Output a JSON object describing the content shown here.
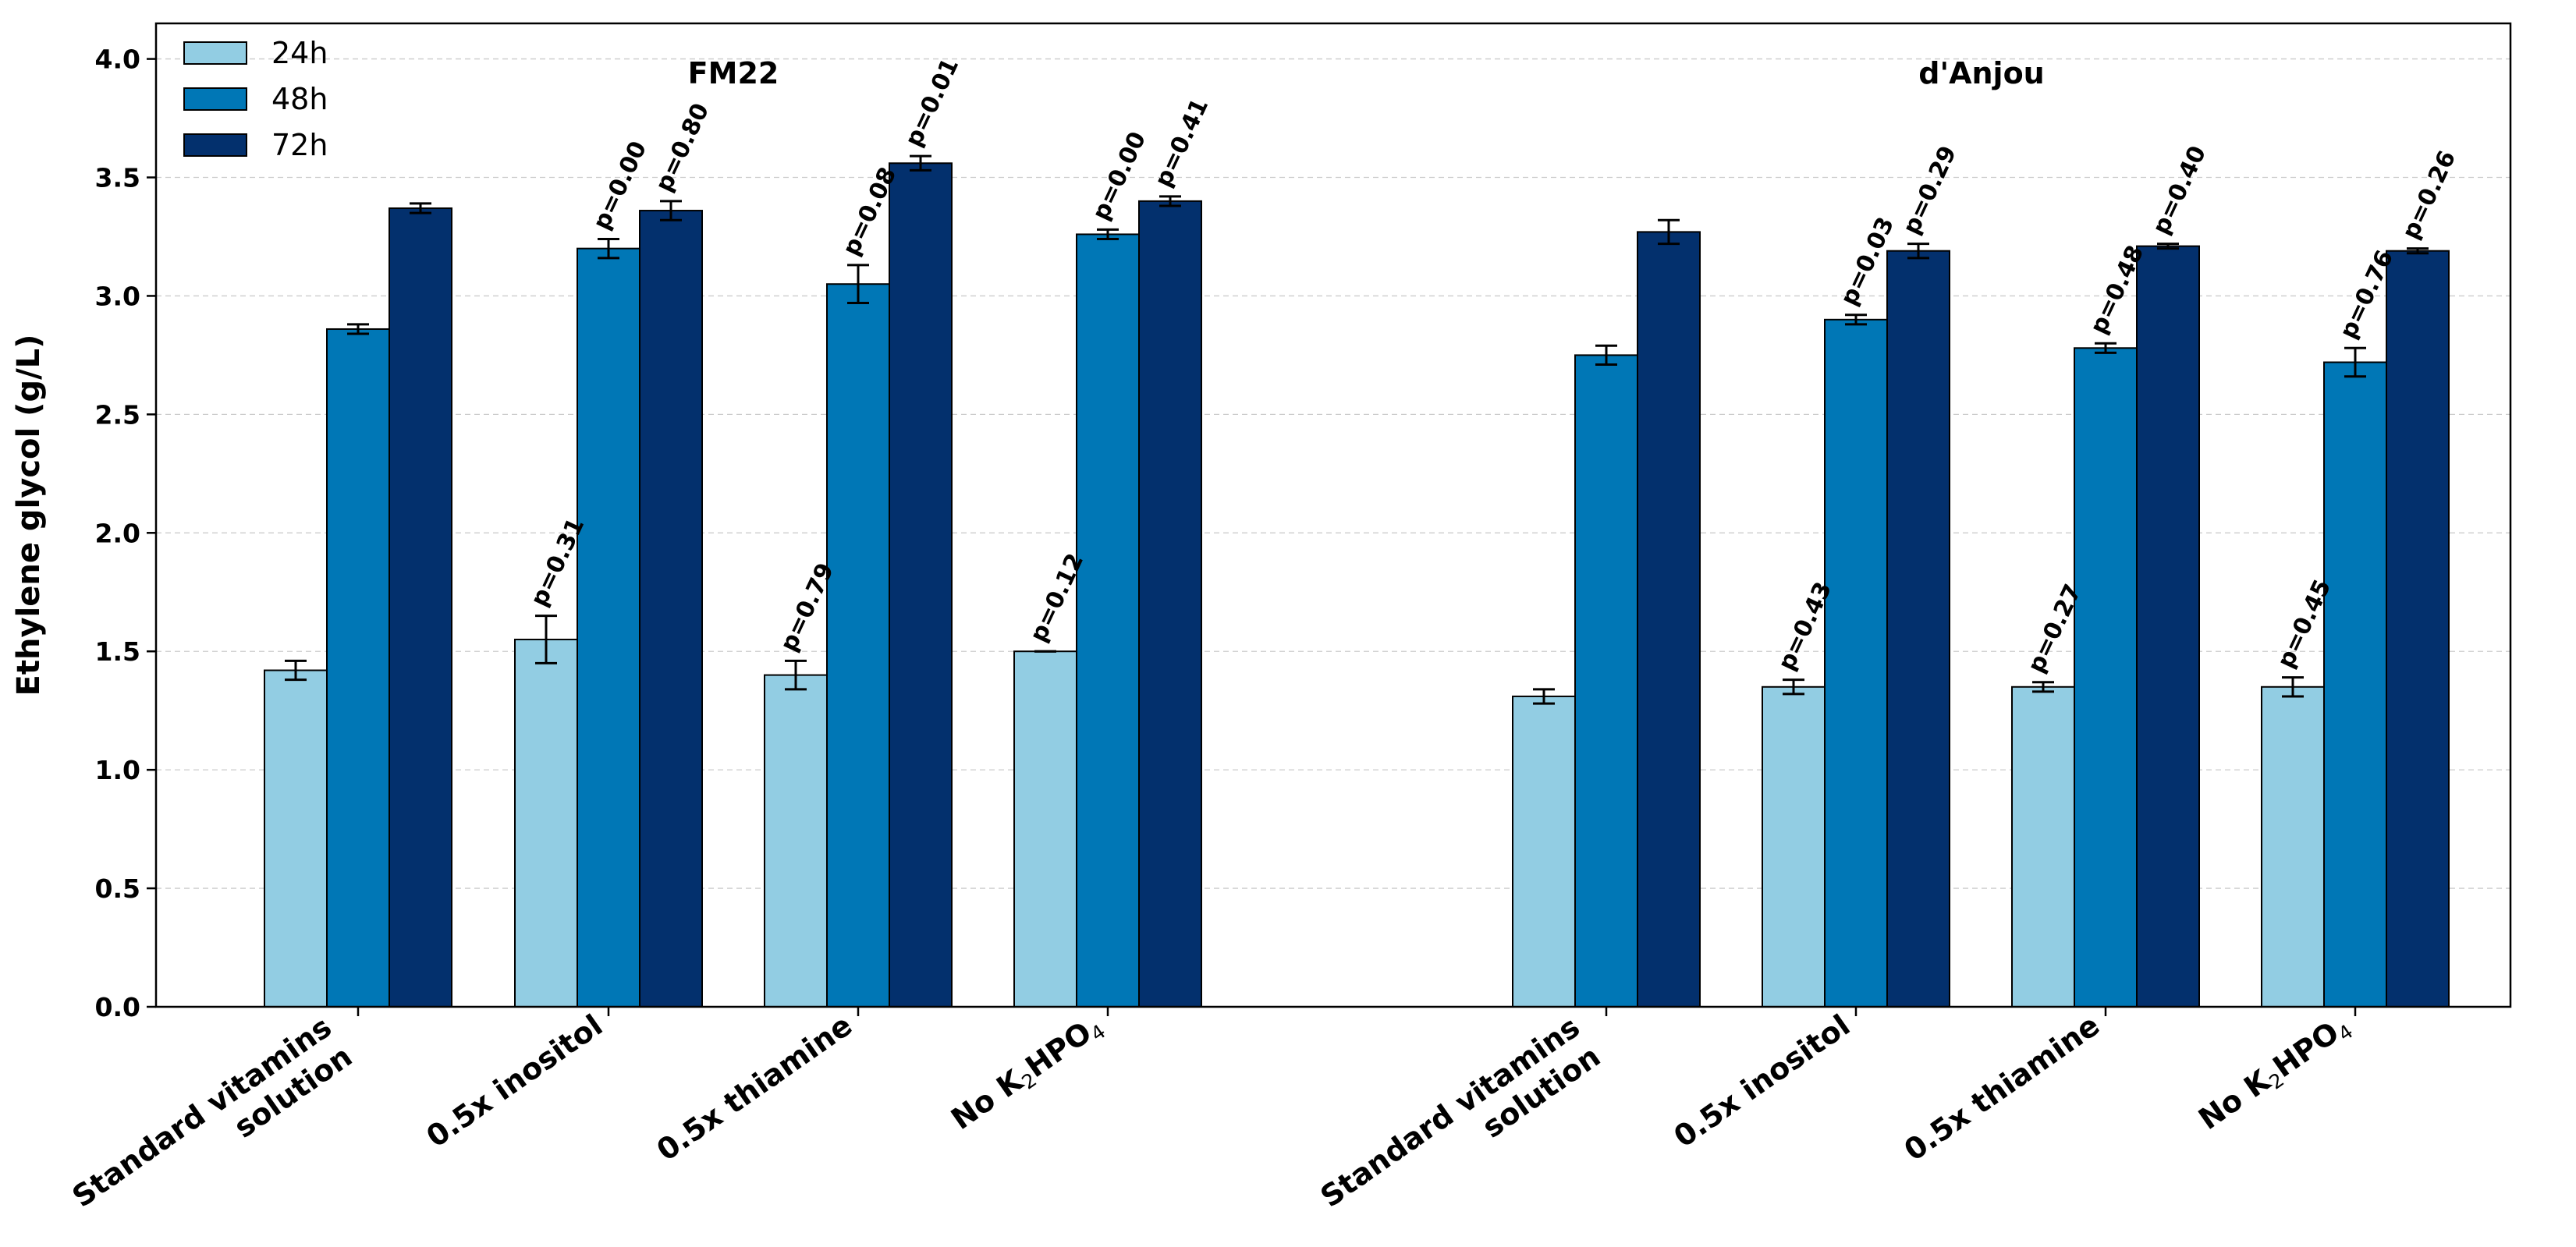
{
  "chart_data": {
    "type": "bar",
    "ylabel": "Ethylene glycol (g/L)",
    "ylim": [
      0,
      4.15
    ],
    "yticks": [
      0.0,
      0.5,
      1.0,
      1.5,
      2.0,
      2.5,
      3.0,
      3.5,
      4.0
    ],
    "ytick_labels": [
      "0.0",
      "0.5",
      "1.0",
      "1.5",
      "2.0",
      "2.5",
      "3.0",
      "3.5",
      "4.0"
    ],
    "grid": "horizontal dashed",
    "legend_position": "top-left",
    "legend": [
      {
        "name": "24h",
        "color": "#92cde3"
      },
      {
        "name": "48h",
        "color": "#0077b6"
      },
      {
        "name": "72h",
        "color": "#03306d"
      }
    ],
    "groups": [
      {
        "title": "FM22",
        "categories": [
          {
            "label": [
              "Standard vitamins",
              "solution"
            ],
            "values": [
              1.42,
              2.86,
              3.37
            ],
            "errors": [
              0.04,
              0.02,
              0.02
            ],
            "pvalues": [
              "",
              "",
              ""
            ]
          },
          {
            "label": [
              "0.5x inositol"
            ],
            "values": [
              1.55,
              3.2,
              3.36
            ],
            "errors": [
              0.1,
              0.04,
              0.04
            ],
            "pvalues": [
              "p=0.31",
              "p=0.00",
              "p=0.80"
            ]
          },
          {
            "label": [
              "0.5x thiamine"
            ],
            "values": [
              1.4,
              3.05,
              3.56
            ],
            "errors": [
              0.06,
              0.08,
              0.03
            ],
            "pvalues": [
              "p=0.79",
              "p=0.08",
              "p=0.01"
            ]
          },
          {
            "label": [
              "No K2HPO4"
            ],
            "values": [
              1.5,
              3.26,
              3.4
            ],
            "errors": [
              0.0,
              0.02,
              0.02
            ],
            "pvalues": [
              "p=0.12",
              "p=0.00",
              "p=0.41"
            ]
          }
        ]
      },
      {
        "title": "d'Anjou",
        "categories": [
          {
            "label": [
              "Standard vitamins",
              "solution"
            ],
            "values": [
              1.31,
              2.75,
              3.27
            ],
            "errors": [
              0.03,
              0.04,
              0.05
            ],
            "pvalues": [
              "",
              "",
              ""
            ]
          },
          {
            "label": [
              "0.5x inositol"
            ],
            "values": [
              1.35,
              2.9,
              3.19
            ],
            "errors": [
              0.03,
              0.02,
              0.03
            ],
            "pvalues": [
              "p=0.43",
              "p=0.03",
              "p=0.29"
            ]
          },
          {
            "label": [
              "0.5x thiamine"
            ],
            "values": [
              1.35,
              2.78,
              3.21
            ],
            "errors": [
              0.02,
              0.02,
              0.01
            ],
            "pvalues": [
              "p=0.27",
              "p=0.48",
              "p=0.40"
            ]
          },
          {
            "label": [
              "No K2HPO4"
            ],
            "values": [
              1.35,
              2.72,
              3.19
            ],
            "errors": [
              0.04,
              0.06,
              0.01
            ],
            "pvalues": [
              "p=0.45",
              "p=0.76",
              "p=0.26"
            ]
          }
        ]
      }
    ]
  }
}
